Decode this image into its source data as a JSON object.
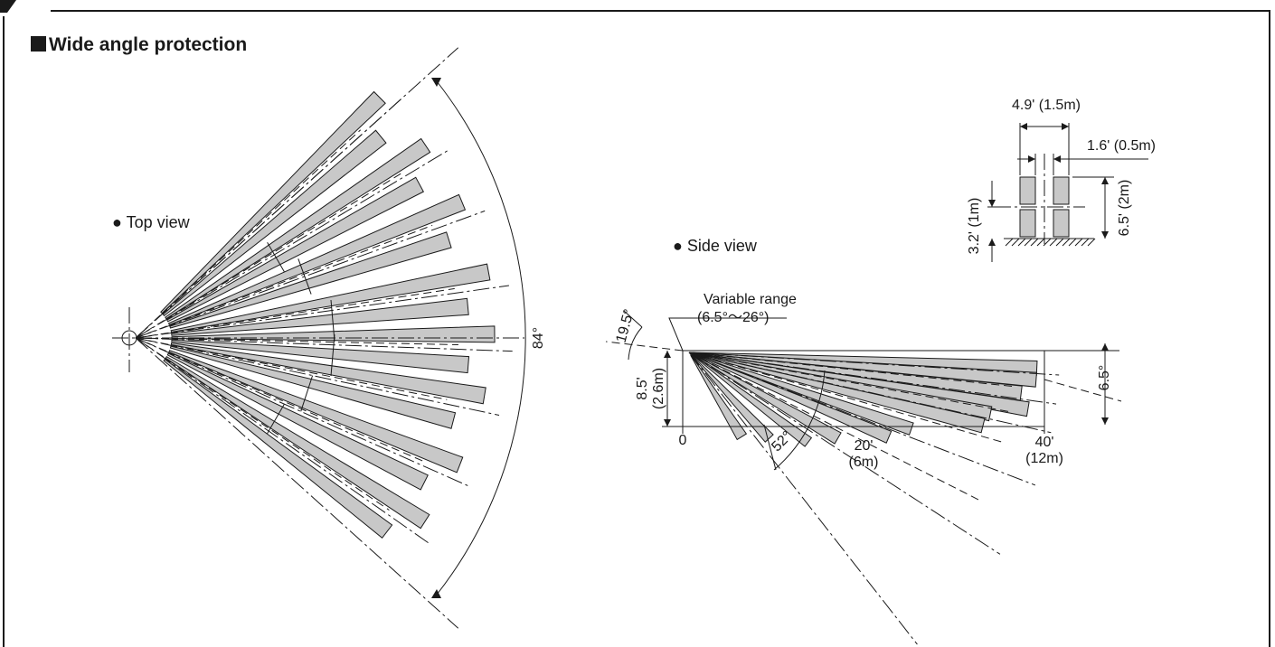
{
  "title": "Wide angle protection",
  "top_view": {
    "label": "Top view",
    "angle_label": "84°"
  },
  "side_view": {
    "label": "Side view",
    "variable_range_label": "Variable range",
    "variable_range_value": "(6.5°～26°)",
    "angle_top_left": "19.5°",
    "angle_right": "6.5°",
    "angle_bottom": "52°",
    "height_ft": "8.5'",
    "height_m": "(2.6m)",
    "dist_zero": "0",
    "dist_mid_ft": "20'",
    "dist_mid_m": "(6m)",
    "dist_far_ft": "40'",
    "dist_far_m": "(12m)"
  },
  "target_detail": {
    "width_outer": "4.9' (1.5m)",
    "width_inner": "1.6' (0.5m)",
    "height_total": "6.5' (2m)",
    "height_half": "3.2' (1m)"
  }
}
